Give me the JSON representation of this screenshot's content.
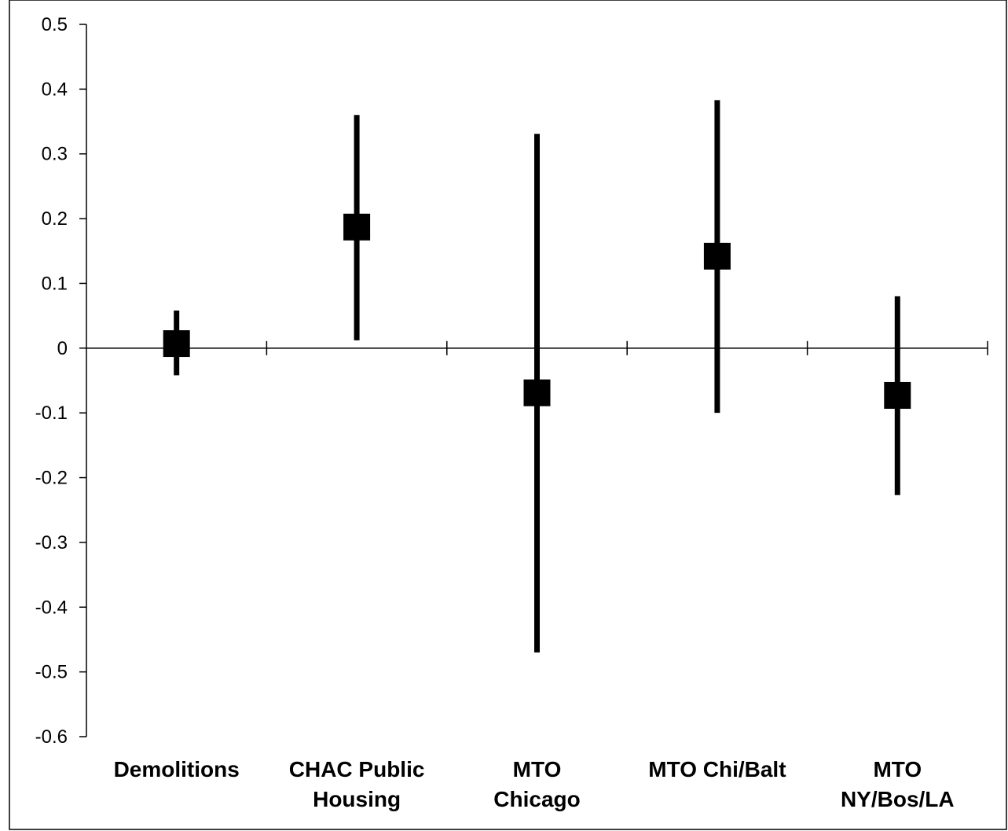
{
  "chart_data": {
    "type": "scatter",
    "title": "",
    "xlabel": "",
    "ylabel": "",
    "ylim": [
      -0.6,
      0.5
    ],
    "y_ticks": [
      "0.5",
      "0.4",
      "0.3",
      "0.2",
      "0.1",
      "0",
      "-0.1",
      "-0.2",
      "-0.3",
      "-0.4",
      "-0.5",
      "-0.6"
    ],
    "y_tick_values": [
      0.5,
      0.4,
      0.3,
      0.2,
      0.1,
      0,
      -0.1,
      -0.2,
      -0.3,
      -0.4,
      -0.5,
      -0.6
    ],
    "grid": false,
    "legend": "none",
    "marker": "square",
    "color": "#000000",
    "categories": [
      {
        "label_lines": [
          "Demolitions"
        ],
        "estimate": 0.007,
        "ci_low": -0.042,
        "ci_high": 0.058
      },
      {
        "label_lines": [
          "CHAC Public",
          "Housing"
        ],
        "estimate": 0.187,
        "ci_low": 0.012,
        "ci_high": 0.36
      },
      {
        "label_lines": [
          "MTO",
          "Chicago"
        ],
        "estimate": -0.069,
        "ci_low": -0.47,
        "ci_high": 0.331
      },
      {
        "label_lines": [
          "MTO Chi/Balt"
        ],
        "estimate": 0.142,
        "ci_low": -0.1,
        "ci_high": 0.383
      },
      {
        "label_lines": [
          "MTO",
          "NY/Bos/LA"
        ],
        "estimate": -0.073,
        "ci_low": -0.227,
        "ci_high": 0.08
      }
    ]
  }
}
